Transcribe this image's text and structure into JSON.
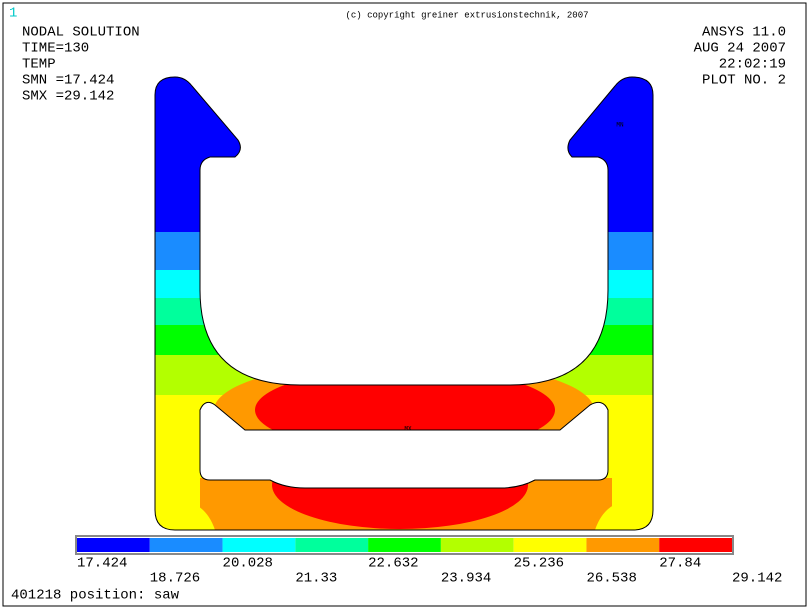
{
  "viewport_number": "1",
  "copyright": "(c) copyright greiner extrusionstechnik, 2007",
  "info_left": [
    "NODAL SOLUTION",
    "TIME=130",
    "TEMP",
    "SMN =17.424",
    "SMX =29.142"
  ],
  "info_right": [
    "ANSYS 11.0",
    "AUG 24 2007",
    "22:02:19",
    "PLOT NO.   2"
  ],
  "markers": {
    "min": "MN",
    "max": "MX"
  },
  "legend": {
    "colors": [
      "#0000ff",
      "#1a8cff",
      "#00ffff",
      "#00ff9c",
      "#00ff00",
      "#b3ff00",
      "#ffff00",
      "#ff9900",
      "#ff0000"
    ],
    "labels": [
      17.424,
      18.726,
      20.028,
      21.33,
      22.632,
      23.934,
      25.236,
      26.538,
      27.84,
      29.142
    ]
  },
  "footer": "401218  position: saw"
}
